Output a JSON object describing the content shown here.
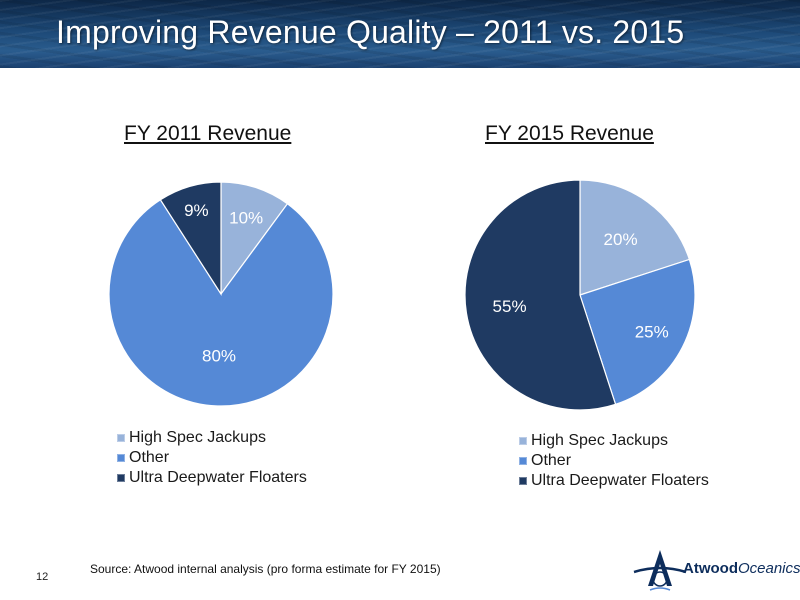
{
  "title": "Improving Revenue Quality – 2011 vs. 2015",
  "page_number": "12",
  "source": "Source: Atwood internal analysis (pro forma estimate for FY 2015)",
  "logo": {
    "name": "Atwood",
    "name_suffix": "Oceanics"
  },
  "colors": {
    "header_bg": "#1c4876",
    "high_spec_jackups": "#98b3da",
    "other": "#5589d6",
    "ultra_deepwater_floaters": "#1f3a62"
  },
  "chart_data": [
    {
      "type": "pie",
      "title": "FY 2011 Revenue",
      "categories": [
        "High Spec Jackups",
        "Other",
        "Ultra Deepwater Floaters"
      ],
      "values": [
        10,
        80,
        9
      ],
      "labels": [
        "10%",
        "80%",
        "9%"
      ],
      "legend_position": "bottom"
    },
    {
      "type": "pie",
      "title": "FY 2015 Revenue",
      "categories": [
        "High Spec Jackups",
        "Other",
        "Ultra Deepwater Floaters"
      ],
      "values": [
        20,
        25,
        55
      ],
      "labels": [
        "20%",
        "25%",
        "55%"
      ],
      "legend_position": "bottom"
    }
  ]
}
